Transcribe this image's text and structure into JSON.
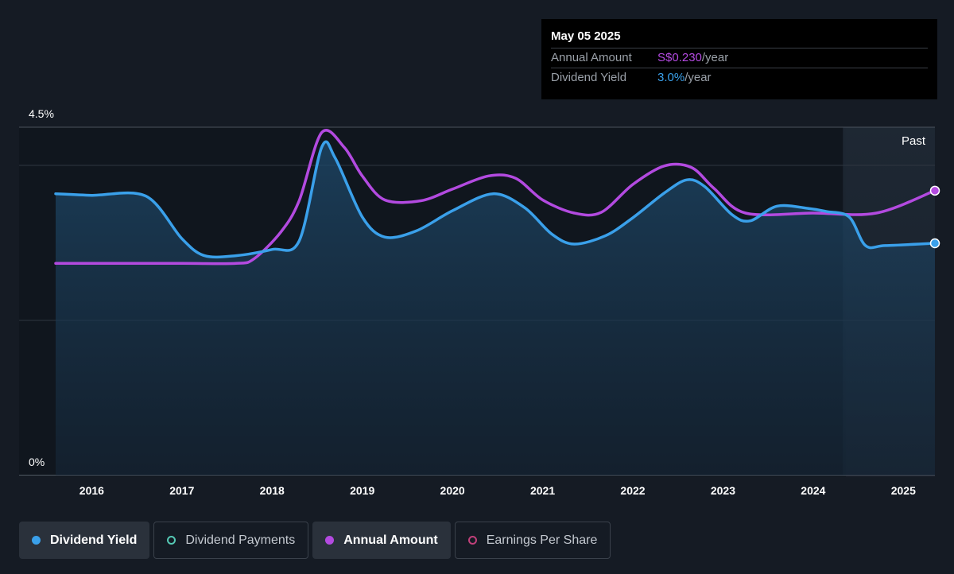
{
  "tooltip": {
    "date": "May 05 2025",
    "annual_amount_label": "Annual Amount",
    "annual_amount_value": "S$0.230",
    "annual_amount_unit": "/year",
    "dividend_yield_label": "Dividend Yield",
    "dividend_yield_value": "3.0%",
    "dividend_yield_unit": "/year"
  },
  "legend": [
    {
      "label": "Dividend Yield",
      "icon": "filled-dot",
      "color": "#3aa0ea",
      "active": true
    },
    {
      "label": "Dividend Payments",
      "icon": "ring-dot",
      "color": "#55c8b4",
      "active": false
    },
    {
      "label": "Annual Amount",
      "icon": "filled-dot",
      "color": "#b34ae0",
      "active": true
    },
    {
      "label": "Earnings Per Share",
      "icon": "ring-dot",
      "color": "#c0407a",
      "active": false
    }
  ],
  "chart_data": {
    "type": "line",
    "y_axis_labels": [
      "4.5%",
      "0%"
    ],
    "ylim": [
      0,
      4.5
    ],
    "xlim": [
      2015.6,
      2025.35
    ],
    "x_ticks": [
      "2016",
      "2017",
      "2018",
      "2019",
      "2020",
      "2021",
      "2022",
      "2023",
      "2024",
      "2025"
    ],
    "x_tick_values": [
      2016,
      2017,
      2018,
      2019,
      2020,
      2021,
      2022,
      2023,
      2024,
      2025
    ],
    "region_label": "Past",
    "region_start": 2024.33,
    "colors": {
      "dividend_yield": "#3aa0ea",
      "annual_amount": "#b34ae0",
      "background": "#151b24"
    },
    "series": [
      {
        "name": "Dividend Yield",
        "color": "#3aa0ea",
        "x": [
          2015.6,
          2016.0,
          2016.6,
          2017.0,
          2017.25,
          2017.6,
          2018.0,
          2018.3,
          2018.55,
          2018.7,
          2019.0,
          2019.25,
          2019.6,
          2020.0,
          2020.45,
          2020.8,
          2021.1,
          2021.35,
          2021.7,
          2022.0,
          2022.35,
          2022.6,
          2022.8,
          2023.1,
          2023.3,
          2023.6,
          2023.95,
          2024.15,
          2024.4,
          2024.58,
          2024.8,
          2025.35
        ],
        "values": [
          3.64,
          3.62,
          3.61,
          3.06,
          2.84,
          2.84,
          2.92,
          3.03,
          4.24,
          4.1,
          3.34,
          3.08,
          3.16,
          3.42,
          3.64,
          3.46,
          3.12,
          2.99,
          3.1,
          3.33,
          3.65,
          3.82,
          3.73,
          3.37,
          3.29,
          3.48,
          3.45,
          3.41,
          3.34,
          2.97,
          2.97,
          3.0
        ]
      },
      {
        "name": "Annual Amount",
        "color": "#b34ae0",
        "x": [
          2015.6,
          2016.0,
          2017.0,
          2017.6,
          2017.8,
          2018.1,
          2018.3,
          2018.55,
          2018.8,
          2019.0,
          2019.25,
          2019.65,
          2020.0,
          2020.4,
          2020.7,
          2021.0,
          2021.35,
          2021.65,
          2022.0,
          2022.35,
          2022.65,
          2022.9,
          2023.25,
          2024.0,
          2024.7,
          2025.35
        ],
        "values": [
          2.74,
          2.74,
          2.74,
          2.74,
          2.8,
          3.15,
          3.55,
          4.43,
          4.24,
          3.87,
          3.56,
          3.55,
          3.7,
          3.87,
          3.84,
          3.56,
          3.39,
          3.4,
          3.76,
          4.0,
          3.98,
          3.71,
          3.39,
          3.39,
          3.39,
          3.68
        ]
      }
    ]
  }
}
